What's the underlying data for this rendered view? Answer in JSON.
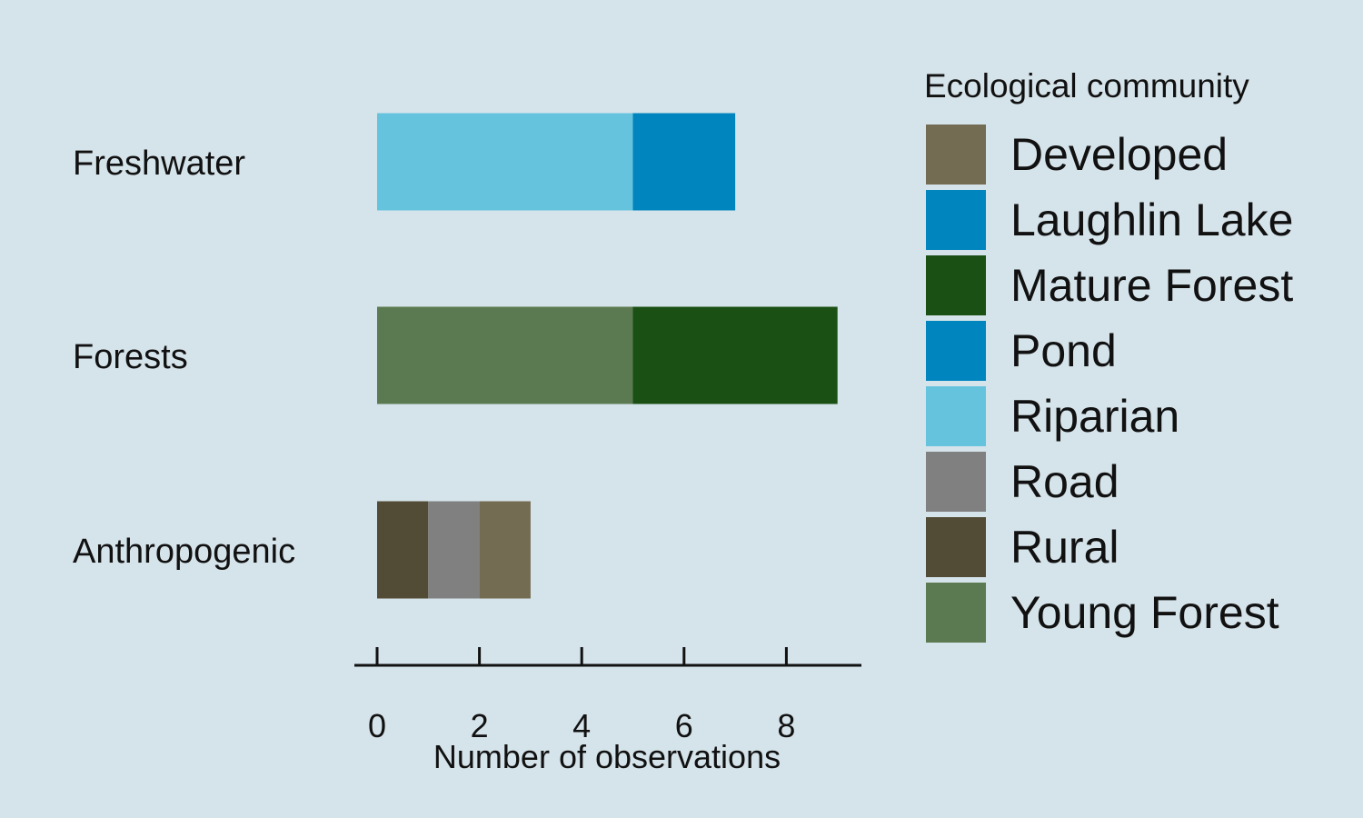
{
  "chart_data": {
    "type": "bar",
    "orientation": "horizontal",
    "stacked": true,
    "categories": [
      "Freshwater",
      "Forests",
      "Anthropogenic"
    ],
    "series": [
      {
        "name": "Rural",
        "values": [
          0,
          0,
          1
        ]
      },
      {
        "name": "Road",
        "values": [
          0,
          0,
          1
        ]
      },
      {
        "name": "Developed",
        "values": [
          0,
          0,
          1
        ]
      },
      {
        "name": "Young Forest",
        "values": [
          0,
          5,
          0
        ]
      },
      {
        "name": "Mature Forest",
        "values": [
          0,
          4,
          0
        ]
      },
      {
        "name": "Riparian",
        "values": [
          5,
          0,
          0
        ]
      },
      {
        "name": "Laughlin Lake",
        "values": [
          2,
          0,
          0
        ]
      },
      {
        "name": "Pond",
        "values": [
          0,
          0,
          0
        ]
      }
    ],
    "colors": {
      "Developed": "#736b52",
      "Laughlin Lake": "#0085bf",
      "Mature Forest": "#1a5014",
      "Pond": "#0085bf",
      "Riparian": "#66c3de",
      "Road": "#808080",
      "Rural": "#524b36",
      "Young Forest": "#5c7a51"
    },
    "xlabel": "Number of observations",
    "ylabel": "",
    "xlim": [
      0,
      9
    ],
    "xticks": [
      0,
      2,
      4,
      6,
      8
    ],
    "grid": false,
    "legend": {
      "title": "Ecological community",
      "position": "right",
      "entries": [
        "Developed",
        "Laughlin Lake",
        "Mature Forest",
        "Pond",
        "Riparian",
        "Road",
        "Rural",
        "Young Forest"
      ]
    },
    "background": "#d5e3ea"
  }
}
